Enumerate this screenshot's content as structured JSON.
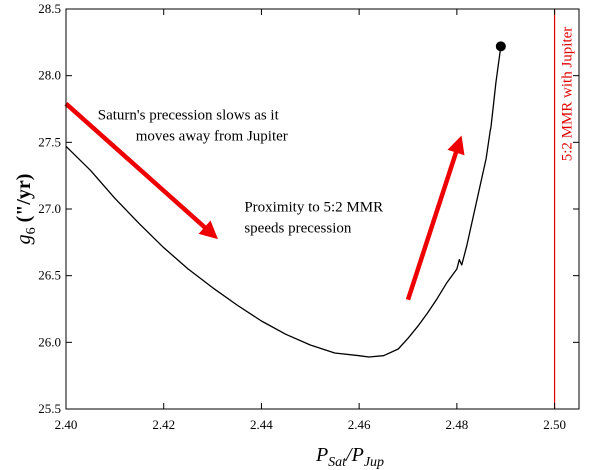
{
  "chart_data": {
    "type": "line",
    "xlabel_main": "P",
    "xlabel_sub_num": "Sat",
    "xlabel_sep": "/P",
    "xlabel_sub_den": "Jup",
    "ylabel_main": "g",
    "ylabel_sub": "6",
    "ylabel_unit": " (\"/yr)",
    "xlim": [
      2.4,
      2.505
    ],
    "ylim": [
      25.5,
      28.5
    ],
    "x_ticks": [
      2.4,
      2.42,
      2.44,
      2.46,
      2.48,
      2.5
    ],
    "x_tick_labels": [
      "2.40",
      "2.42",
      "2.44",
      "2.46",
      "2.48",
      "2.50"
    ],
    "y_ticks": [
      25.5,
      26.0,
      26.5,
      27.0,
      27.5,
      28.0,
      28.5
    ],
    "y_tick_labels": [
      "25.5",
      "26.0",
      "26.5",
      "27.0",
      "27.5",
      "28.0",
      "28.5"
    ],
    "grid": false,
    "series": [
      {
        "color": "#000000",
        "x": [
          2.4,
          2.405,
          2.41,
          2.415,
          2.42,
          2.425,
          2.43,
          2.435,
          2.44,
          2.445,
          2.45,
          2.455,
          2.46,
          2.462,
          2.465,
          2.468,
          2.47,
          2.472,
          2.474,
          2.476,
          2.478,
          2.48,
          2.4805,
          2.481,
          2.482,
          2.484,
          2.486,
          2.4868,
          2.487,
          2.488,
          2.489
        ],
        "y": [
          27.47,
          27.29,
          27.08,
          26.89,
          26.71,
          26.55,
          26.41,
          26.28,
          26.16,
          26.06,
          25.98,
          25.92,
          25.9,
          25.89,
          25.9,
          25.95,
          26.03,
          26.12,
          26.22,
          26.33,
          26.45,
          26.55,
          26.62,
          26.58,
          26.72,
          27.05,
          27.38,
          27.58,
          27.62,
          27.95,
          28.22
        ]
      }
    ],
    "endpoint": {
      "x": 2.489,
      "y": 28.22
    },
    "reference_line": {
      "x": 2.5,
      "color": "#e00000",
      "label": "5:2 MMR with Jupiter"
    },
    "arrows": [
      {
        "color": "#ee0000",
        "from": [
          2.4,
          27.79
        ],
        "to": [
          2.43,
          26.81
        ]
      },
      {
        "color": "#ee0000",
        "from": [
          2.47,
          26.32
        ],
        "to": [
          2.4805,
          27.5
        ]
      }
    ],
    "annotations": [
      {
        "lines": [
          "Saturn's precession slows as it",
          "moves away from Jupiter"
        ],
        "x": 2.4065,
        "y": 27.67,
        "align": "left"
      },
      {
        "lines": [
          "Proximity to 5:2 MMR",
          "speeds precession"
        ],
        "x": 2.4365,
        "y": 26.98,
        "align": "left"
      }
    ]
  }
}
